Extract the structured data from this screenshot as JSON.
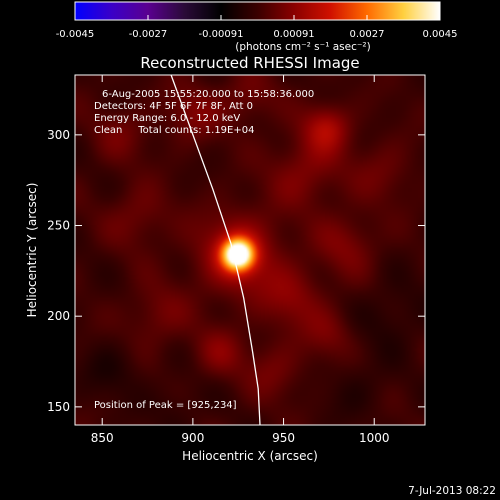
{
  "colorbar": {
    "ticks": [
      "-0.0045",
      "-0.0027",
      "-0.00091",
      "0.00091",
      "0.0027",
      "0.0045"
    ],
    "unit_label": "(photons cm⁻² s⁻¹ asec⁻²)",
    "colors": [
      "#0000ff",
      "#3a00c8",
      "#5a0090",
      "#2a0a38",
      "#000000",
      "#3a0000",
      "#8a0000",
      "#d01000",
      "#ff6a00",
      "#ffd040",
      "#ffffff"
    ]
  },
  "chart_data": {
    "type": "heatmap",
    "title": "Reconstructed RHESSI Image",
    "xlabel": "Heliocentric X (arcsec)",
    "ylabel": "Heliocentric Y (arcsec)",
    "xlim": [
      835,
      1028
    ],
    "ylim": [
      140,
      333
    ],
    "x_ticks": [
      "850",
      "900",
      "950",
      "1000"
    ],
    "y_ticks": [
      "150",
      "200",
      "250",
      "300"
    ],
    "x_tick_values": [
      850,
      900,
      950,
      1000
    ],
    "y_tick_values": [
      150,
      200,
      250,
      300
    ],
    "zlim": [
      -0.0045,
      0.0045
    ],
    "peak_value": 0.0045,
    "peak_position": [
      925,
      234
    ],
    "annotations": [
      "6-Aug-2005 15:55:20.000 to 15:58:36.000",
      "Detectors: 4F 5F 6F 7F 8F, Att 0",
      "Energy Range: 6.0 - 12.0 keV",
      "Clean     Total counts: 1.19E+04"
    ],
    "peak_label": "Position of Peak = [925,234]",
    "limb_points": [
      [
        888,
        333
      ],
      [
        900,
        300
      ],
      [
        911,
        270
      ],
      [
        921,
        240
      ],
      [
        928,
        210
      ],
      [
        933,
        180
      ],
      [
        936,
        160
      ],
      [
        937,
        140
      ]
    ],
    "sources": [
      {
        "x": 925,
        "y": 234,
        "value": 0.0045,
        "sigma": 6
      },
      {
        "x": 925,
        "y": 234,
        "value": 0.0014,
        "sigma": 16
      },
      {
        "x": 974,
        "y": 304,
        "value": 0.0012,
        "sigma": 9
      },
      {
        "x": 962,
        "y": 280,
        "value": 0.0008,
        "sigma": 14
      },
      {
        "x": 900,
        "y": 312,
        "value": 0.0007,
        "sigma": 11
      },
      {
        "x": 955,
        "y": 210,
        "value": 0.0008,
        "sigma": 12
      },
      {
        "x": 985,
        "y": 240,
        "value": 0.0007,
        "sigma": 12
      },
      {
        "x": 870,
        "y": 255,
        "value": 0.0006,
        "sigma": 12
      },
      {
        "x": 880,
        "y": 200,
        "value": 0.0006,
        "sigma": 12
      },
      {
        "x": 915,
        "y": 180,
        "value": 0.0007,
        "sigma": 10
      },
      {
        "x": 945,
        "y": 170,
        "value": 0.0006,
        "sigma": 11
      },
      {
        "x": 975,
        "y": 190,
        "value": 0.0006,
        "sigma": 10
      },
      {
        "x": 860,
        "y": 300,
        "value": 0.0005,
        "sigma": 11
      },
      {
        "x": 930,
        "y": 320,
        "value": 0.0006,
        "sigma": 10
      },
      {
        "x": 1005,
        "y": 280,
        "value": 0.0005,
        "sigma": 12
      },
      {
        "x": 1010,
        "y": 200,
        "value": -0.0004,
        "sigma": 13
      },
      {
        "x": 855,
        "y": 170,
        "value": -0.0004,
        "sigma": 11
      },
      {
        "x": 990,
        "y": 160,
        "value": -0.0003,
        "sigma": 12
      },
      {
        "x": 890,
        "y": 150,
        "value": -0.0003,
        "sigma": 10
      }
    ]
  },
  "footer": {
    "timestamp": "7-Jul-2013 08:22"
  }
}
